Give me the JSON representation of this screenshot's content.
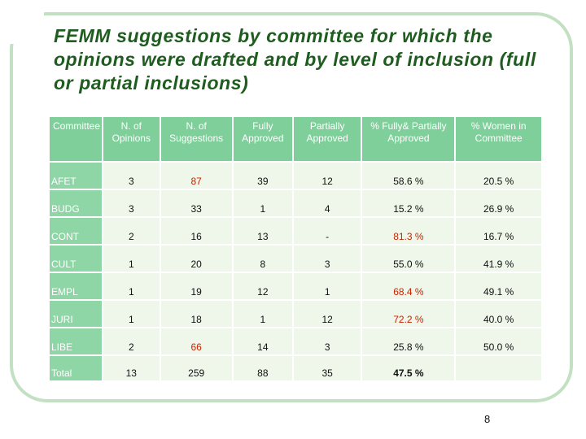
{
  "title": "FEMM suggestions by committee for which the opinions were drafted and by level of inclusion (full or partial inclusions)",
  "table": {
    "headers": [
      "Committee",
      "N. of Opinions",
      "N. of Suggestions",
      "Fully Approved",
      "Partially Approved",
      "% Fully& Partially Approved",
      "% Women in Committee"
    ],
    "rows": [
      [
        "AFET",
        "3",
        "87",
        "39",
        "12",
        "58.6 %",
        "20.5 %"
      ],
      [
        "BUDG",
        "3",
        "33",
        "1",
        "4",
        "15.2 %",
        "26.9 %"
      ],
      [
        "CONT",
        "2",
        "16",
        "13",
        "-",
        "81.3 %",
        "16.7 %"
      ],
      [
        "CULT",
        "1",
        "20",
        "8",
        "3",
        "55.0 %",
        "41.9 %"
      ],
      [
        "EMPL",
        "1",
        "19",
        "12",
        "1",
        "68.4 %",
        "49.1 %"
      ],
      [
        "JURI",
        "1",
        "18",
        "1",
        "12",
        "72.2 %",
        "40.0 %"
      ],
      [
        "LIBE",
        "2",
        "66",
        "14",
        "3",
        "25.8 %",
        "50.0 %"
      ]
    ],
    "total": [
      "Total",
      "13",
      "259",
      "88",
      "35",
      "47.5 %",
      ""
    ]
  },
  "colors": {
    "title": "#1f5c1f",
    "header_bg": "#7fcf9a",
    "cell_bg": "#eef7ea",
    "highlight": "#cc2200"
  },
  "page_number": "8"
}
